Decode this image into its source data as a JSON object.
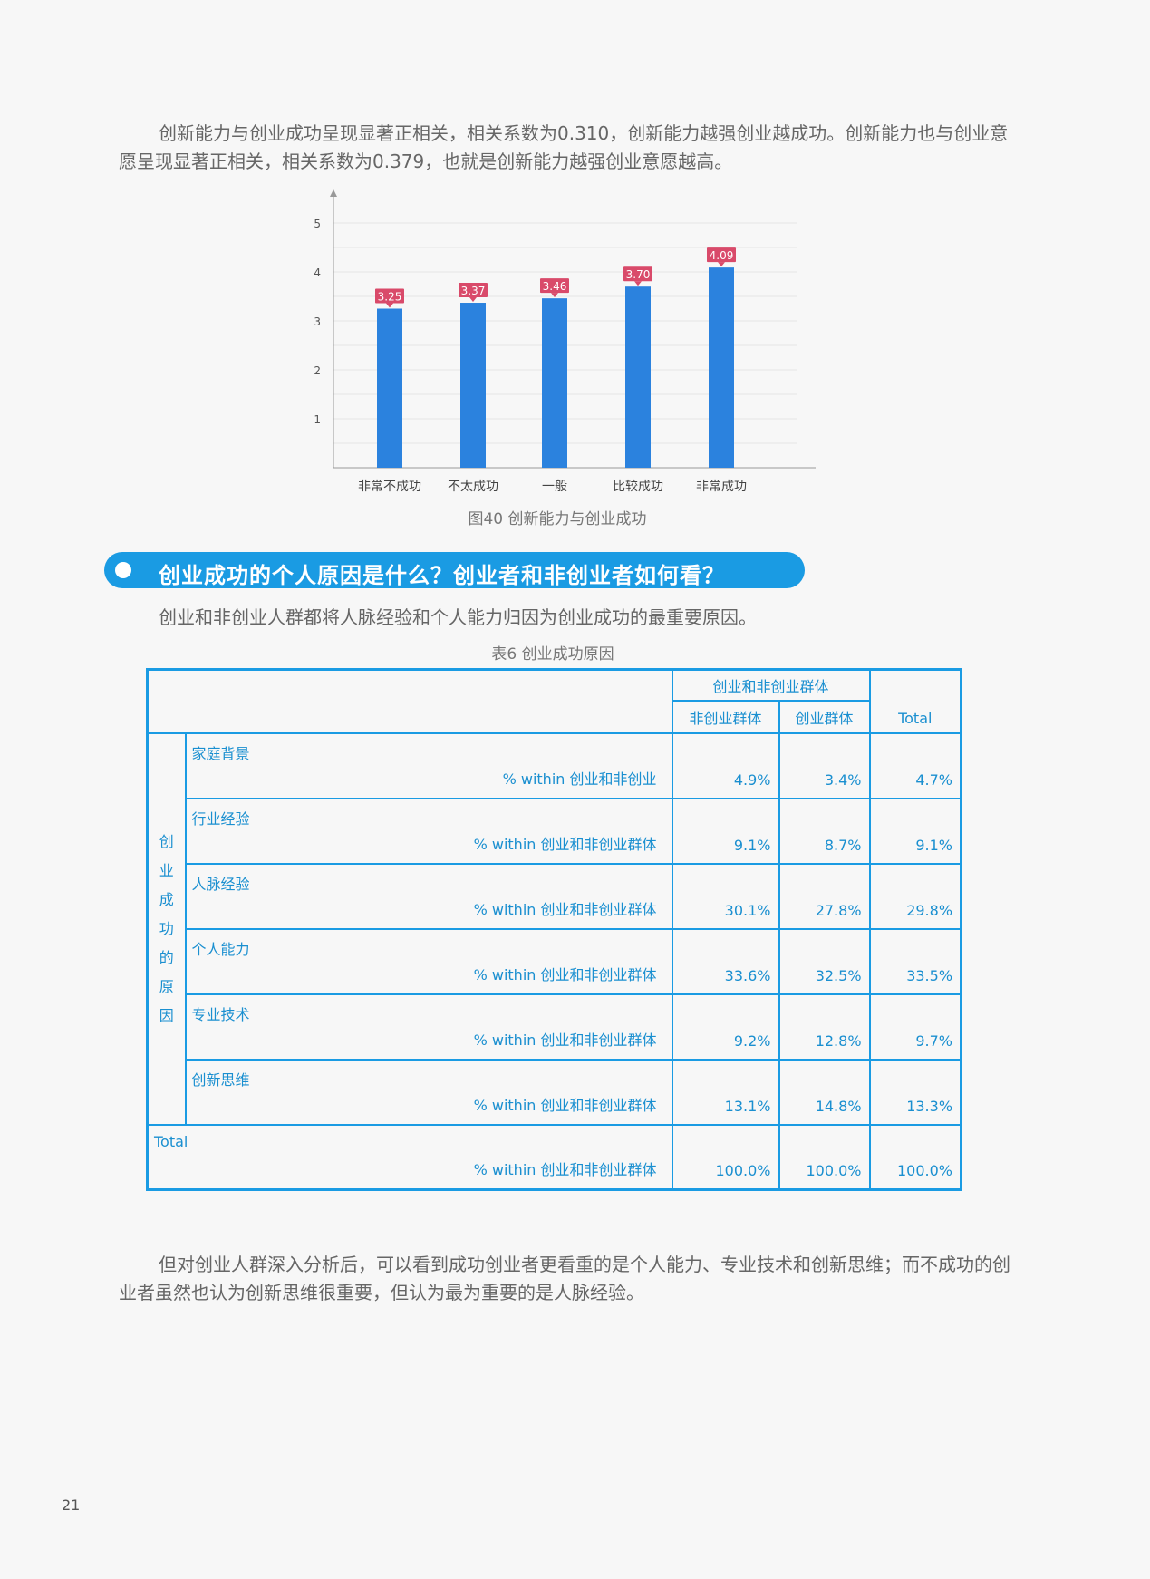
{
  "paragraphs": {
    "p1": "创新能力与创业成功呈现显著正相关，相关系数为0.310，创新能力越强创业越成功。创新能力也与创业意愿呈现显著正相关，相关系数为0.379，也就是创新能力越强创业意愿越高。",
    "p2": "创业和非创业人群都将人脉经验和个人能力归因为创业成功的最重要原因。",
    "p3": "但对创业人群深入分析后，可以看到成功创业者更看重的是个人能力、专业技术和创新思维；而不成功的创业者虽然也认为创新思维很重要，但认为最为重要的是人脉经验。"
  },
  "figure_caption": "图40 创新能力与创业成功",
  "chart_data": {
    "type": "bar",
    "categories": [
      "非常不成功",
      "不太成功",
      "一般",
      "比较成功",
      "非常成功"
    ],
    "values": [
      3.25,
      3.37,
      3.46,
      3.7,
      4.09
    ],
    "data_labels": [
      "3.25",
      "3.37",
      "3.46",
      "3.70",
      "4.09"
    ],
    "y_ticks": [
      "1",
      "2",
      "3",
      "4",
      "5"
    ],
    "ylim": [
      0,
      5
    ],
    "bar_color": "#2b82de",
    "label_color": "#d94a6a",
    "grid": true
  },
  "section": {
    "title": "创业成功的个人原因是什么？创业者和非创业者如何看？"
  },
  "table_caption": "表6 创业成功原因",
  "table": {
    "group_header": "创业和非创业群体",
    "col_non": "非创业群体",
    "col_ent": "创业群体",
    "col_total": "Total",
    "side_label": [
      "创",
      "业",
      "成",
      "功",
      "的",
      "原",
      "因"
    ],
    "rows": [
      {
        "name": "家庭背景",
        "within": "% within  创业和非创业",
        "non": "4.9%",
        "ent": "3.4%",
        "total": "4.7%"
      },
      {
        "name": "行业经验",
        "within": "% within  创业和非创业群体",
        "non": "9.1%",
        "ent": "8.7%",
        "total": "9.1%"
      },
      {
        "name": "人脉经验",
        "within": "% within  创业和非创业群体",
        "non": "30.1%",
        "ent": "27.8%",
        "total": "29.8%"
      },
      {
        "name": "个人能力",
        "within": "% within  创业和非创业群体",
        "non": "33.6%",
        "ent": "32.5%",
        "total": "33.5%"
      },
      {
        "name": "专业技术",
        "within": "% within  创业和非创业群体",
        "non": "9.2%",
        "ent": "12.8%",
        "total": "9.7%"
      },
      {
        "name": "创新思维",
        "within": "% within  创业和非创业群体",
        "non": "13.1%",
        "ent": "14.8%",
        "total": "13.3%"
      }
    ],
    "total_row": {
      "name": "Total",
      "within": "% within  创业和非创业群体",
      "non": "100.0%",
      "ent": "100.0%",
      "total": "100.0%"
    }
  },
  "page_number": "21"
}
